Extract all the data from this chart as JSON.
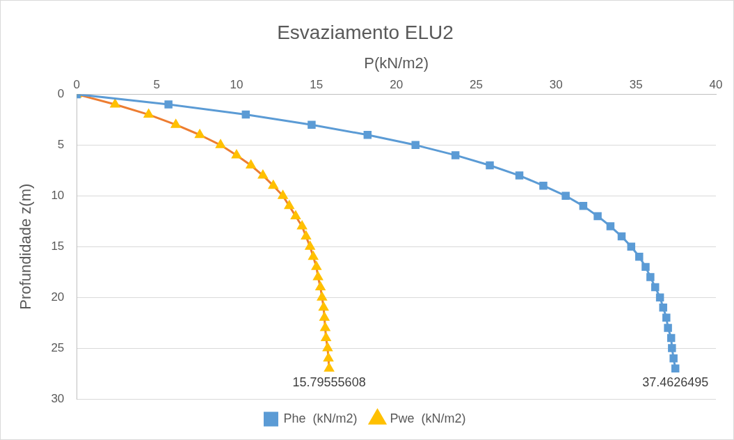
{
  "chart_data": {
    "type": "line",
    "title": "Esvaziamento ELU2",
    "xlabel": "P(kN/m2)",
    "ylabel": "Profundidade z(m)",
    "xlim": [
      0,
      40
    ],
    "xticks": [
      0,
      5,
      10,
      15,
      20,
      25,
      30,
      35,
      40
    ],
    "ylim": [
      30,
      0
    ],
    "yticks": [
      0,
      5,
      10,
      15,
      20,
      25,
      30
    ],
    "grid": "y",
    "legend": "bottom",
    "series": [
      {
        "name": "Phe  (kN/m2)",
        "color": "#5b9bd5",
        "marker": "square",
        "x": [
          0,
          5.74,
          10.58,
          14.7,
          18.2,
          21.2,
          23.7,
          25.85,
          27.7,
          29.2,
          30.6,
          31.7,
          32.6,
          33.4,
          34.1,
          34.7,
          35.2,
          35.6,
          35.9,
          36.2,
          36.5,
          36.7,
          36.9,
          37.0,
          37.2,
          37.25,
          37.35,
          37.4626495
        ],
        "values": [
          0,
          1,
          2,
          3,
          4,
          5,
          6,
          7,
          8,
          9,
          10,
          11,
          12,
          13,
          14,
          15,
          16,
          17,
          18,
          19,
          20,
          21,
          22,
          23,
          24,
          25,
          26,
          27
        ]
      },
      {
        "name": "Pwe  (kN/m2)",
        "color": "#ed7d31",
        "colors": [
          "#ffc000",
          "#ffc000",
          "#ffc000",
          "#ffc000",
          "#ffc000",
          "#ffc000",
          "#ffc000",
          "#ffc000",
          "#ffc000",
          "#ffc000",
          "#ffc000",
          "#ffc000",
          "#ffc000",
          "#ffc000",
          "#ffc000",
          "#ffc000",
          "#ffc000",
          "#ffc000",
          "#ffc000",
          "#ffc000",
          "#ffc000",
          "#ffc000",
          "#ffc000",
          "#ffc000",
          "#ffc000",
          "#ffc000",
          "#ffc000",
          "#ffc000"
        ],
        "marker": "triangle",
        "x": [
          0,
          2.4,
          4.5,
          6.2,
          7.7,
          9.0,
          10.0,
          10.9,
          11.65,
          12.3,
          12.9,
          13.3,
          13.7,
          14.1,
          14.35,
          14.6,
          14.8,
          15.0,
          15.1,
          15.25,
          15.35,
          15.45,
          15.5,
          15.55,
          15.6,
          15.7,
          15.75,
          15.79555608
        ],
        "values": [
          0,
          1,
          2,
          3,
          4,
          5,
          6,
          7,
          8,
          9,
          10,
          11,
          12,
          13,
          14,
          15,
          16,
          17,
          18,
          19,
          20,
          21,
          22,
          23,
          24,
          25,
          26,
          27
        ]
      }
    ],
    "annotations": [
      {
        "text": "15.79555608",
        "x": 15.79555608,
        "y": 27
      },
      {
        "text": "37.4626495",
        "x": 37.4626495,
        "y": 27
      }
    ]
  }
}
